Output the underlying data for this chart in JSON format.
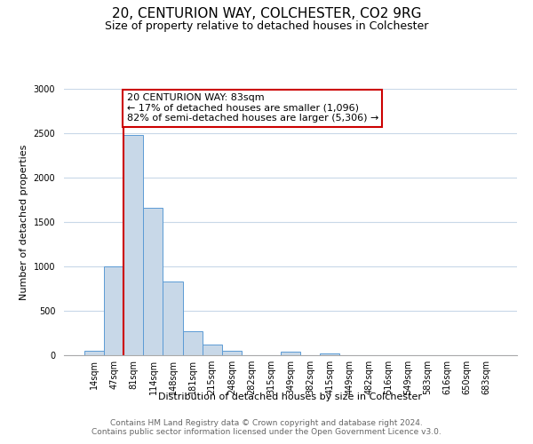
{
  "title": "20, CENTURION WAY, COLCHESTER, CO2 9RG",
  "subtitle": "Size of property relative to detached houses in Colchester",
  "xlabel": "Distribution of detached houses by size in Colchester",
  "ylabel": "Number of detached properties",
  "bar_labels": [
    "14sqm",
    "47sqm",
    "81sqm",
    "114sqm",
    "148sqm",
    "181sqm",
    "215sqm",
    "248sqm",
    "282sqm",
    "315sqm",
    "349sqm",
    "382sqm",
    "415sqm",
    "449sqm",
    "482sqm",
    "516sqm",
    "549sqm",
    "583sqm",
    "616sqm",
    "650sqm",
    "683sqm"
  ],
  "bar_values": [
    55,
    1000,
    2480,
    1660,
    830,
    270,
    120,
    55,
    0,
    0,
    40,
    0,
    25,
    0,
    0,
    0,
    0,
    0,
    0,
    0,
    0
  ],
  "bar_color": "#c8d8e8",
  "bar_edge_color": "#5b9bd5",
  "property_line_idx": 2,
  "property_line_color": "#cc0000",
  "annotation_box_line1": "20 CENTURION WAY: 83sqm",
  "annotation_box_line2": "← 17% of detached houses are smaller (1,096)",
  "annotation_box_line3": "82% of semi-detached houses are larger (5,306) →",
  "annotation_box_facecolor": "#ffffff",
  "annotation_box_edgecolor": "#cc0000",
  "ylim": [
    0,
    3000
  ],
  "yticks": [
    0,
    500,
    1000,
    1500,
    2000,
    2500,
    3000
  ],
  "footer_line1": "Contains HM Land Registry data © Crown copyright and database right 2024.",
  "footer_line2": "Contains public sector information licensed under the Open Government Licence v3.0.",
  "background_color": "#ffffff",
  "grid_color": "#c8d8e8",
  "title_fontsize": 11,
  "subtitle_fontsize": 9,
  "axis_label_fontsize": 8,
  "tick_fontsize": 7,
  "annotation_fontsize": 8,
  "footer_fontsize": 6.5
}
